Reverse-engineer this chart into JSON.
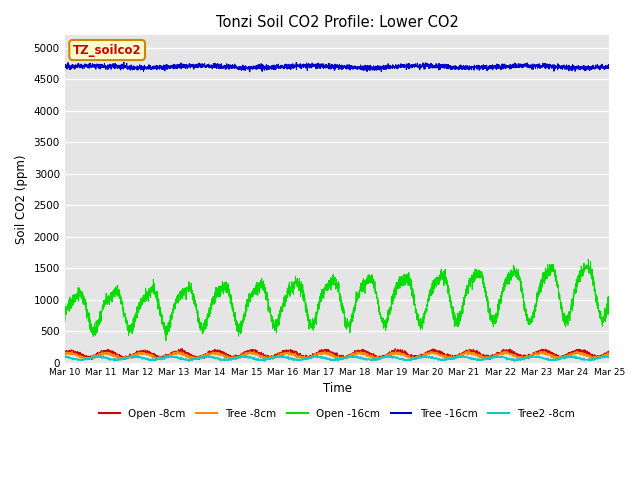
{
  "title": "Tonzi Soil CO2 Profile: Lower CO2",
  "xlabel": "Time",
  "ylabel": "Soil CO2 (ppm)",
  "ylim": [
    0,
    5200
  ],
  "yticks": [
    0,
    500,
    1000,
    1500,
    2000,
    2500,
    3000,
    3500,
    4000,
    4500,
    5000
  ],
  "n_points": 3600,
  "bg_color": "#e5e5e5",
  "fig_bg": "#ffffff",
  "series": {
    "open_8cm": {
      "label": "Open -8cm",
      "color": "#cc0000"
    },
    "tree_8cm": {
      "label": "Tree -8cm",
      "color": "#ff8800"
    },
    "open_16cm": {
      "label": "Open -16cm",
      "color": "#00dd00"
    },
    "tree_16cm": {
      "label": "Tree -16cm",
      "color": "#0000cc"
    },
    "tree2_8cm": {
      "label": "Tree2 -8cm",
      "color": "#00cccc"
    }
  },
  "xtick_labels": [
    "Mar 10",
    "Mar 11",
    "Mar 12",
    "Mar 13",
    "Mar 14",
    "Mar 15",
    "Mar 16",
    "Mar 17",
    "Mar 18",
    "Mar 19",
    "Mar 20",
    "Mar 21",
    "Mar 22",
    "Mar 23",
    "Mar 24",
    "Mar 25"
  ],
  "legend_box_label": "TZ_soilco2",
  "legend_box_bg": "#ffffcc",
  "legend_box_edge": "#cc8800",
  "legend_box_text": "#cc0000"
}
